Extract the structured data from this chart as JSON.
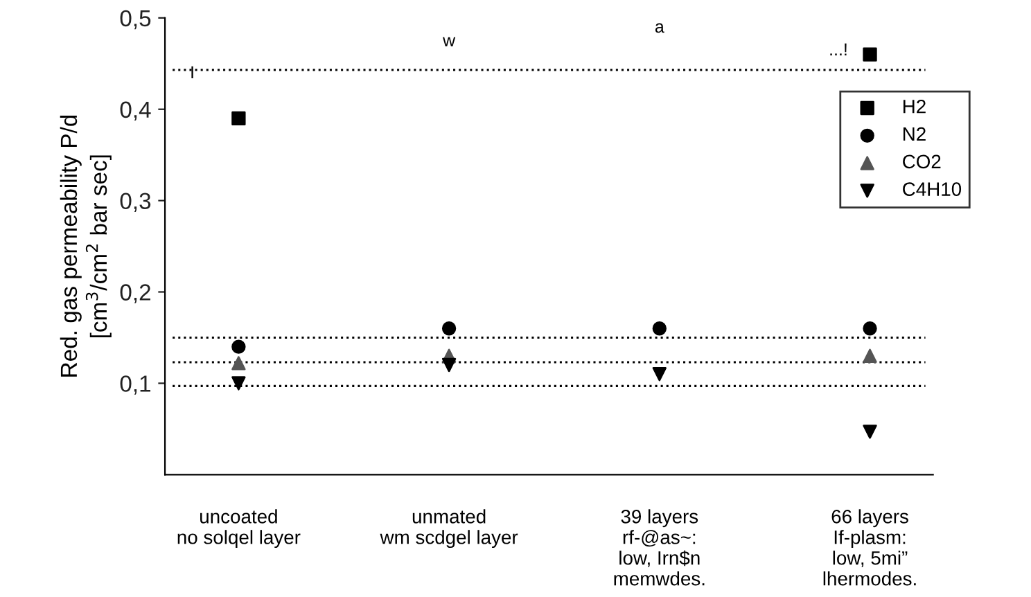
{
  "chart_data": {
    "type": "scatter",
    "ylabel": "Red. gas permeability P/d\n[cm$^{3}$/cm$^{2}$ bar sec]",
    "categories": [
      "uncoated\nno solqel layer",
      "unmated\nwm scdgel layer",
      "39 layers\nrf-@as~:\nlow, Irn$n\nmemwdes.",
      "66 layers\nIf-plasm:\nlow, 5mi”\nlhermodes."
    ],
    "series": [
      {
        "name": "H2",
        "color": "#000000",
        "marker": "square",
        "values": [
          0.39,
          null,
          null,
          0.46
        ]
      },
      {
        "name": "N2",
        "color": "#000000",
        "marker": "circle",
        "values": [
          0.14,
          0.16,
          0.16,
          0.16
        ]
      },
      {
        "name": "CO2",
        "color": "#555555",
        "marker": "triangle",
        "values": [
          0.122,
          0.13,
          null,
          0.13
        ]
      },
      {
        "name": "C4H10",
        "color": "#000000",
        "marker": "triangle_down",
        "values": [
          0.1,
          0.12,
          0.11,
          0.047
        ]
      }
    ],
    "ylim": [
      0,
      0.5
    ],
    "yticks": [
      {
        "value": 0.1,
        "label": "0,1"
      },
      {
        "value": 0.2,
        "label": "0,2"
      },
      {
        "value": 0.3,
        "label": "0,3"
      },
      {
        "value": 0.4,
        "label": "0,4"
      },
      {
        "value": 0.5,
        "label": "0,5"
      }
    ],
    "ref_lines": [
      {
        "axis": "y",
        "value": 0.443,
        "color": "#000000",
        "line_style": "dotted"
      },
      {
        "axis": "y",
        "value": 0.15,
        "color": "#000000",
        "line_style": "dotted"
      },
      {
        "axis": "y",
        "value": 0.123,
        "color": "#000000",
        "line_style": "dotted"
      },
      {
        "axis": "y",
        "value": 0.097,
        "color": "#000000",
        "line_style": "dotted"
      }
    ],
    "annotations": [
      "I",
      "w",
      "a",
      "...!"
    ],
    "legend": "top right",
    "grid": false
  }
}
